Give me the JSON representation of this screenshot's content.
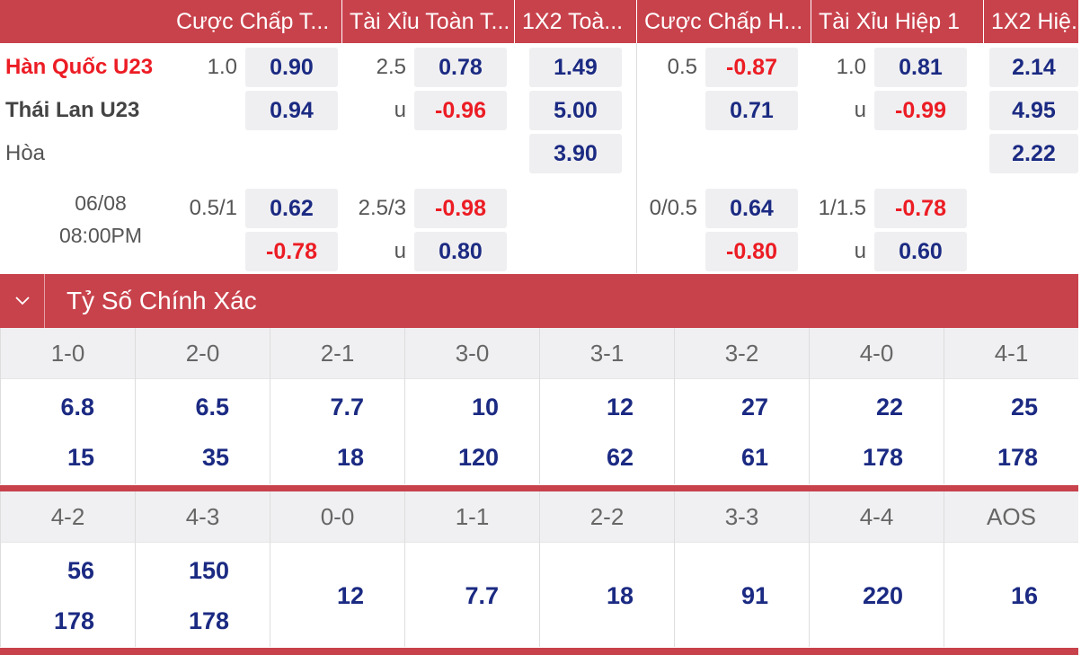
{
  "headers": [
    "Cược Chấp T...",
    "Tài Xỉu Toàn T...",
    "1X2 Toà...",
    "Cược Chấp H...",
    "Tài Xỉu Hiệp 1",
    "1X2 Hiệ..."
  ],
  "teams": {
    "home": "Hàn Quốc U23",
    "away": "Thái Lan U23",
    "draw": "Hòa"
  },
  "colors": {
    "accent": "#c8424c",
    "home": "#ec1c24",
    "value": "#1b2a82",
    "negative": "#ec1c24"
  },
  "match": {
    "date": "06/08",
    "time": "08:00PM"
  },
  "row1": {
    "hcap": "1.0",
    "hcap_home": "0.90",
    "ou": "2.5",
    "ou_over": "0.78",
    "x12_home": "1.49",
    "h1_hcap": "0.5",
    "h1_hcap_home": "-0.87",
    "h1_ou": "1.0",
    "h1_ou_over": "0.81",
    "h1_x12_home": "2.14"
  },
  "row2": {
    "hcap_away": "0.94",
    "ou_u": "u",
    "ou_under": "-0.96",
    "x12_away": "5.00",
    "h1_hcap_away": "0.71",
    "h1_ou_u": "u",
    "h1_ou_under": "-0.99",
    "h1_x12_away": "4.95"
  },
  "row3": {
    "x12_draw": "3.90",
    "h1_x12_draw": "2.22"
  },
  "row4": {
    "hcap": "0.5/1",
    "hcap_home": "0.62",
    "ou": "2.5/3",
    "ou_over": "-0.98",
    "h1_hcap": "0/0.5",
    "h1_hcap_home": "0.64",
    "h1_ou": "1/1.5",
    "h1_ou_over": "-0.78"
  },
  "row5": {
    "hcap_away": "-0.78",
    "ou_u": "u",
    "ou_under": "0.80",
    "h1_hcap_away": "-0.80",
    "h1_ou_u": "u",
    "h1_ou_under": "0.60"
  },
  "section_title": "Tỷ Số Chính Xác",
  "scores1": [
    {
      "score": "1-0",
      "a": "6.8",
      "b": "15"
    },
    {
      "score": "2-0",
      "a": "6.5",
      "b": "35"
    },
    {
      "score": "2-1",
      "a": "7.7",
      "b": "18"
    },
    {
      "score": "3-0",
      "a": "10",
      "b": "120"
    },
    {
      "score": "3-1",
      "a": "12",
      "b": "62"
    },
    {
      "score": "3-2",
      "a": "27",
      "b": "61"
    },
    {
      "score": "4-0",
      "a": "22",
      "b": "178"
    },
    {
      "score": "4-1",
      "a": "25",
      "b": "178"
    }
  ],
  "scores2": [
    {
      "score": "4-2",
      "a": "56",
      "b": "178"
    },
    {
      "score": "4-3",
      "a": "150",
      "b": "178"
    },
    {
      "score": "0-0",
      "a": "12"
    },
    {
      "score": "1-1",
      "a": "7.7"
    },
    {
      "score": "2-2",
      "a": "18"
    },
    {
      "score": "3-3",
      "a": "91"
    },
    {
      "score": "4-4",
      "a": "220"
    },
    {
      "score": "AOS",
      "a": "16"
    }
  ]
}
